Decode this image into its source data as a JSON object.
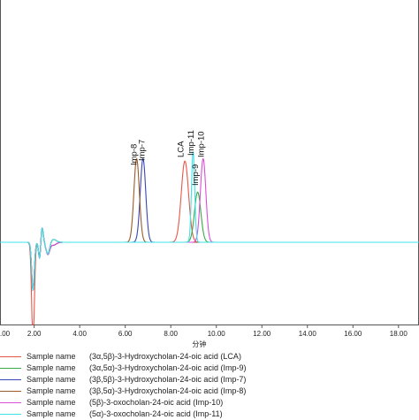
{
  "chart_data": {
    "type": "line",
    "title": "",
    "xlabel": "分钟",
    "ylabel": "",
    "xlim": [
      0.5,
      18.9
    ],
    "ylim": [
      -1,
      9
    ],
    "x_ticks": [
      2,
      4,
      6,
      8,
      10,
      12,
      14,
      16,
      18
    ],
    "x_tick_labels": [
      "2.00",
      "4.00",
      "6.00",
      "8.00",
      "10.00",
      "12.00",
      "14.00",
      "16.00",
      "18.00"
    ],
    "x_tick_label_left_clip": ".00",
    "grid": false,
    "legend_position": "bottom",
    "baseline": 0,
    "series": [
      {
        "name": "(3α,5β)-3-Hydroxycholan-24-oic acid (LCA)",
        "color": "#e8564a",
        "peak_x": 8.62,
        "peak_height": 3.4,
        "peak_width": 0.16,
        "dip_depth": 4.2
      },
      {
        "name": "(3α,5α)-3-Hydroxycholan-24-oic acid (Imp-9)",
        "color": "#3aa845",
        "peak_x": 9.18,
        "peak_height": 2.1,
        "peak_width": 0.14,
        "dip_depth": 2.0
      },
      {
        "name": "(3β,5β)-3-Hydroxycholan-24-oic acid (Imp-7)",
        "color": "#3946b5",
        "peak_x": 6.78,
        "peak_height": 3.5,
        "peak_width": 0.12,
        "dip_depth": 2.0
      },
      {
        "name": "(3β,5α)-3-Hydroxycholan-24-oic acid (Imp-8)",
        "color": "#9b5a2a",
        "peak_x": 6.5,
        "peak_height": 3.5,
        "peak_width": 0.12,
        "dip_depth": 2.0
      },
      {
        "name": "(5β)-3-oxocholan-24-oic acid (Imp-10)",
        "color": "#d94fd8",
        "peak_x": 9.42,
        "peak_height": 3.5,
        "peak_width": 0.12,
        "dip_depth": 2.0
      },
      {
        "name": "(5α)-3-oxocholan-24-oic acid (Imp-11)",
        "color": "#3fe3e8",
        "peak_x": 8.98,
        "peak_height": 3.8,
        "peak_width": 0.07,
        "dip_depth": 2.0
      }
    ],
    "annotations": [
      {
        "text": "Imp-8",
        "x": 6.5
      },
      {
        "text": "Imp-7",
        "x": 6.85
      },
      {
        "text": "LCA",
        "x": 8.55
      },
      {
        "text": "Imp-11",
        "x": 9.0
      },
      {
        "text": "Imp-9",
        "x": 9.2
      },
      {
        "text": "Imp-10",
        "x": 9.45
      }
    ]
  },
  "legend": {
    "sample_prefix": "Sample name"
  }
}
